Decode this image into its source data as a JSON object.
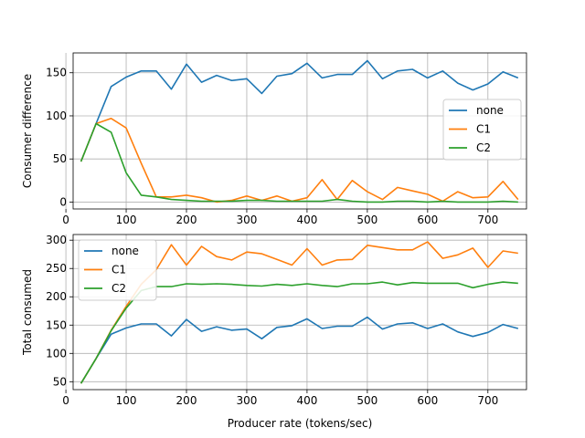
{
  "chart_data": [
    {
      "type": "line",
      "xlabel": "",
      "ylabel": "Consumer difference",
      "xlim": [
        12,
        764
      ],
      "ylim": [
        -8,
        173
      ],
      "xticks": [
        0,
        100,
        200,
        300,
        400,
        500,
        600,
        700
      ],
      "yticks": [
        0,
        50,
        100,
        150
      ],
      "grid": true,
      "legend": "center-right",
      "x": [
        25,
        50,
        75,
        100,
        125,
        150,
        175,
        200,
        225,
        250,
        275,
        300,
        325,
        350,
        375,
        400,
        425,
        450,
        475,
        500,
        525,
        550,
        575,
        600,
        625,
        650,
        675,
        700,
        725,
        750
      ],
      "series": [
        {
          "name": "none",
          "color": "#1f77b4",
          "values": [
            47,
            91,
            134,
            145,
            152,
            152,
            131,
            160,
            139,
            147,
            141,
            143,
            126,
            146,
            149,
            161,
            144,
            148,
            148,
            164,
            143,
            152,
            154,
            144,
            152,
            138,
            130,
            137,
            151,
            144
          ]
        },
        {
          "name": "C1",
          "color": "#ff7f0e",
          "values": [
            47,
            91,
            97,
            86,
            45,
            6,
            6,
            8,
            5,
            0,
            2,
            7,
            2,
            7,
            1,
            5,
            26,
            3,
            25,
            12,
            3,
            17,
            13,
            9,
            1,
            12,
            5,
            6,
            24,
            3
          ]
        },
        {
          "name": "C2",
          "color": "#2ca02c",
          "values": [
            47,
            91,
            81,
            34,
            8,
            6,
            3,
            2,
            1,
            1,
            1,
            2,
            2,
            1,
            1,
            1,
            1,
            3,
            1,
            0,
            0,
            1,
            1,
            0,
            1,
            0,
            0,
            0,
            1,
            0
          ]
        }
      ]
    },
    {
      "type": "line",
      "xlabel": "Producer rate (tokens/sec)",
      "ylabel": "Total consumed",
      "xlim": [
        12,
        764
      ],
      "ylim": [
        36,
        310
      ],
      "xticks": [
        0,
        100,
        200,
        300,
        400,
        500,
        600,
        700
      ],
      "yticks": [
        50,
        100,
        150,
        200,
        250,
        300
      ],
      "grid": true,
      "legend": "upper-left",
      "x": [
        25,
        50,
        75,
        100,
        125,
        150,
        175,
        200,
        225,
        250,
        275,
        300,
        325,
        350,
        375,
        400,
        425,
        450,
        475,
        500,
        525,
        550,
        575,
        600,
        625,
        650,
        675,
        700,
        725,
        750
      ],
      "series": [
        {
          "name": "none",
          "color": "#1f77b4",
          "values": [
            47,
            91,
            134,
            145,
            152,
            152,
            131,
            160,
            139,
            147,
            141,
            143,
            126,
            146,
            149,
            161,
            144,
            148,
            148,
            164,
            143,
            152,
            154,
            144,
            152,
            138,
            130,
            137,
            151,
            144
          ]
        },
        {
          "name": "C1",
          "color": "#ff7f0e",
          "values": [
            47,
            91,
            141,
            183,
            222,
            248,
            292,
            256,
            289,
            271,
            265,
            279,
            276,
            266,
            256,
            285,
            256,
            265,
            266,
            291,
            287,
            283,
            283,
            297,
            268,
            274,
            286,
            252,
            281,
            277
          ]
        },
        {
          "name": "C2",
          "color": "#2ca02c",
          "values": [
            47,
            91,
            140,
            180,
            211,
            218,
            218,
            223,
            222,
            223,
            222,
            220,
            219,
            222,
            220,
            223,
            220,
            218,
            223,
            223,
            226,
            221,
            225,
            224,
            224,
            224,
            216,
            222,
            226,
            224
          ]
        }
      ]
    }
  ]
}
